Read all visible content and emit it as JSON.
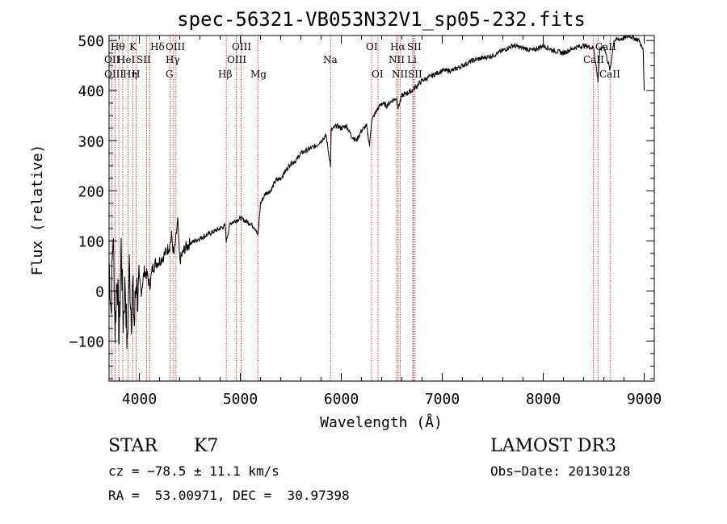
{
  "chart_data": {
    "type": "line",
    "title": "spec-56321-VB053N32V1_sp05-232.fits",
    "xlabel": "Wavelength (Å)",
    "ylabel": "Flux (relative)",
    "xlim": [
      3700,
      9100
    ],
    "ylim": [
      -180,
      510
    ],
    "xticks": [
      4000,
      5000,
      6000,
      7000,
      8000,
      9000
    ],
    "yticks": [
      -100,
      0,
      100,
      200,
      300,
      400,
      500
    ],
    "xtick_labels": [
      "4000",
      "5000",
      "6000",
      "7000",
      "8000",
      "9000"
    ],
    "ytick_labels": [
      "−100",
      "0",
      "100",
      "200",
      "300",
      "400",
      "500"
    ],
    "series": [
      {
        "name": "flux",
        "x": [
          3700,
          3720,
          3740,
          3760,
          3780,
          3800,
          3820,
          3840,
          3860,
          3880,
          3900,
          3920,
          3935,
          3950,
          3968,
          3985,
          4000,
          4020,
          4050,
          4080,
          4102,
          4130,
          4160,
          4200,
          4240,
          4270,
          4300,
          4320,
          4340,
          4360,
          4380,
          4400,
          4450,
          4500,
          4550,
          4600,
          4650,
          4700,
          4750,
          4800,
          4850,
          4861,
          4900,
          4950,
          5000,
          5050,
          5100,
          5150,
          5175,
          5200,
          5250,
          5300,
          5350,
          5400,
          5450,
          5500,
          5550,
          5600,
          5650,
          5700,
          5750,
          5800,
          5850,
          5893,
          5900,
          5950,
          6000,
          6050,
          6100,
          6150,
          6200,
          6250,
          6280,
          6300,
          6350,
          6400,
          6450,
          6500,
          6550,
          6563,
          6600,
          6650,
          6700,
          6750,
          6800,
          6900,
          7000,
          7100,
          7200,
          7300,
          7400,
          7500,
          7600,
          7700,
          7800,
          7900,
          8000,
          8100,
          8200,
          8300,
          8400,
          8500,
          8542,
          8560,
          8600,
          8662,
          8700,
          8800,
          8850,
          8900,
          8950,
          8990,
          9000
        ],
        "y": [
          60,
          -40,
          120,
          -80,
          40,
          -100,
          90,
          -60,
          20,
          -120,
          50,
          -50,
          10,
          -70,
          30,
          -20,
          20,
          0,
          40,
          30,
          10,
          45,
          55,
          60,
          70,
          80,
          90,
          110,
          70,
          100,
          140,
          60,
          85,
          95,
          100,
          105,
          110,
          115,
          120,
          125,
          130,
          100,
          135,
          140,
          145,
          140,
          135,
          125,
          110,
          175,
          195,
          200,
          220,
          225,
          240,
          255,
          260,
          275,
          280,
          285,
          290,
          300,
          310,
          250,
          320,
          330,
          325,
          330,
          310,
          300,
          320,
          330,
          290,
          340,
          360,
          375,
          370,
          380,
          385,
          365,
          390,
          395,
          400,
          410,
          420,
          430,
          440,
          440,
          450,
          460,
          465,
          470,
          480,
          490,
          485,
          480,
          490,
          480,
          475,
          485,
          490,
          485,
          420,
          480,
          490,
          440,
          500,
          505,
          510,
          505,
          500,
          480,
          400
        ]
      }
    ],
    "lines": [
      {
        "name": "Hθ",
        "x": 3797
      },
      {
        "name": "OII",
        "x": 3727
      },
      {
        "name": "OIII",
        "x": 3760
      },
      {
        "name": "K",
        "x": 3934
      },
      {
        "name": "H",
        "x": 3968
      },
      {
        "name": "HeI",
        "x": 3889
      },
      {
        "name": "Hη",
        "x": 3835
      },
      {
        "name": "SII",
        "x": 4072
      },
      {
        "name": "Hδ",
        "x": 4102
      },
      {
        "name": "OIII",
        "x": 4363
      },
      {
        "name": "Hγ",
        "x": 4340
      },
      {
        "name": "G",
        "x": 4305
      },
      {
        "name": "Hβ",
        "x": 4861
      },
      {
        "name": "OIII",
        "x": 4959
      },
      {
        "name": "OIII",
        "x": 5007
      },
      {
        "name": "Mg",
        "x": 5175
      },
      {
        "name": "Na",
        "x": 5893
      },
      {
        "name": "OI",
        "x": 6300
      },
      {
        "name": "OI",
        "x": 6364
      },
      {
        "name": "NII",
        "x": 6548
      },
      {
        "name": "Hα",
        "x": 6563
      },
      {
        "name": "NII",
        "x": 6583
      },
      {
        "name": "SII",
        "x": 6716
      },
      {
        "name": "SII",
        "x": 6731
      },
      {
        "name": "Li",
        "x": 6708
      },
      {
        "name": "CaII",
        "x": 8498
      },
      {
        "name": "CaII",
        "x": 8542
      },
      {
        "name": "CaII",
        "x": 8662
      }
    ]
  },
  "info": {
    "class": "STAR",
    "subclass": "K7",
    "survey": "LAMOST DR3",
    "cz": "cz = −78.5 ± 11.1 km/s",
    "obsdate": "Obs−Date: 20130128",
    "radec": "RA =  53.00971, DEC =  30.97398"
  },
  "line_label_rows": [
    [
      {
        "t": "Hθ"
      },
      {
        "t": "K"
      },
      {
        "t": "Hδ"
      },
      {
        "t": "OIII"
      },
      {
        "t": "OIII"
      },
      {
        "t": "OI"
      },
      {
        "t": "Hα"
      },
      {
        "t": "SII"
      },
      {
        "t": "CaII"
      }
    ],
    [
      {
        "t": "OII"
      },
      {
        "t": "HeI"
      },
      {
        "t": "SII"
      },
      {
        "t": "Hγ"
      },
      {
        "t": "OIII"
      },
      {
        "t": "Na"
      },
      {
        "t": "NII"
      },
      {
        "t": "Li"
      },
      {
        "t": "CaII"
      }
    ],
    [
      {
        "t": "OIII"
      },
      {
        "t": "Hη"
      },
      {
        "t": "H"
      },
      {
        "t": "G"
      },
      {
        "t": "Hβ"
      },
      {
        "t": "Mg"
      },
      {
        "t": "OI"
      },
      {
        "t": "NII"
      },
      {
        "t": "SII"
      },
      {
        "t": "CaII"
      }
    ]
  ],
  "colors": {
    "line_marker": "#b22222",
    "spectrum": "#000000",
    "axis": "#000000"
  }
}
